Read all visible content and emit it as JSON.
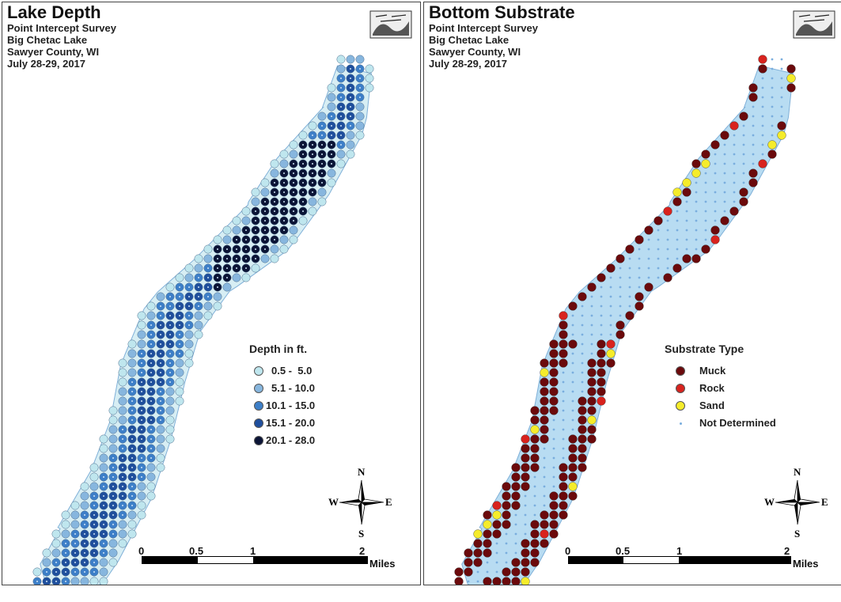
{
  "left_panel": {
    "title": "Lake Depth",
    "subtitle_lines": [
      "Point Intercept Survey",
      "Big Chetac Lake",
      "Sawyer County, WI",
      "July 28-29, 2017"
    ],
    "legend": {
      "title": "Depth in ft.",
      "items": [
        {
          "label": "0.5 -  5.0",
          "color": "#bfe6ee"
        },
        {
          "label": "5.1 - 10.0",
          "color": "#87b6de"
        },
        {
          "label": "10.1 - 15.0",
          "color": "#3d7fc8"
        },
        {
          "label": "15.1 - 20.0",
          "color": "#1f4f9d"
        },
        {
          "label": "20.1 - 28.0",
          "color": "#0b1436"
        }
      ]
    },
    "compass": {
      "n": "N",
      "s": "S",
      "e": "E",
      "w": "W"
    },
    "scale": {
      "ticks": [
        "0",
        "0.5",
        "1",
        "2"
      ],
      "unit": "Miles"
    }
  },
  "right_panel": {
    "title": "Bottom Substrate",
    "subtitle_lines": [
      "Point Intercept Survey",
      "Big Chetac Lake",
      "Sawyer County, WI",
      "July 28-29, 2017"
    ],
    "legend": {
      "title": "Substrate Type",
      "items": [
        {
          "label": "Muck",
          "color": "#6b0a0c"
        },
        {
          "label": "Rock",
          "color": "#d8231e"
        },
        {
          "label": "Sand",
          "color": "#f5ec2b"
        },
        {
          "label": "Not Determined",
          "color": "#7aaede"
        }
      ]
    },
    "compass": {
      "n": "N",
      "s": "S",
      "e": "E",
      "w": "W"
    },
    "scale": {
      "ticks": [
        "0",
        "0.5",
        "1",
        "2"
      ],
      "unit": "Miles"
    }
  },
  "colors": {
    "lake_fill": "#b8dcf2",
    "lake_outline": "#7fb0d8"
  }
}
